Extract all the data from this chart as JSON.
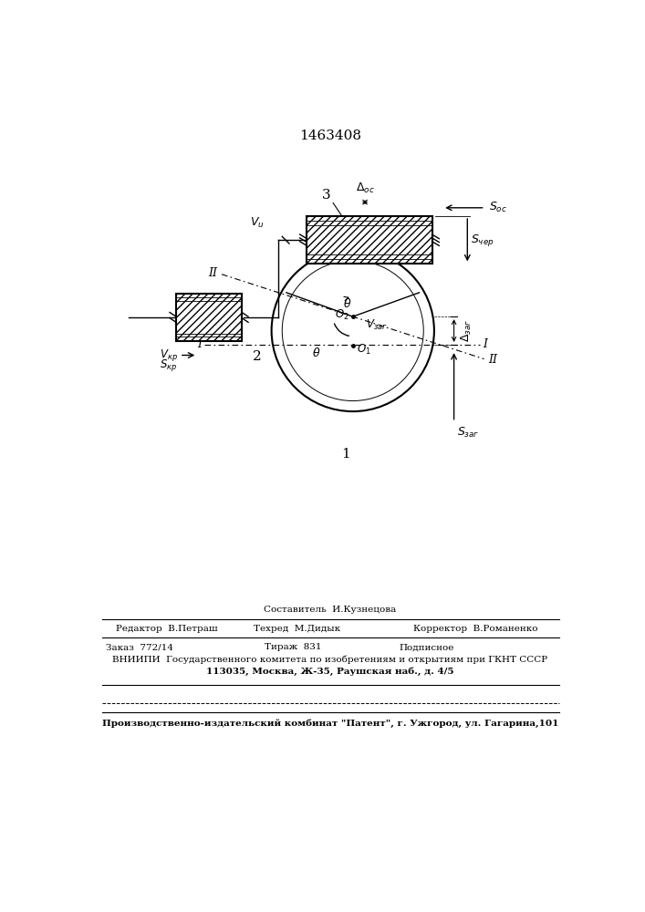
{
  "patent_number": "1463408",
  "bg_color": "#ffffff",
  "fig_width": 7.07,
  "fig_height": 10.0,
  "dpi": 100,
  "bottom_text": {
    "line0_center": "Составитель  И.Кузнецова",
    "line1_left": "Редактор  В.Петраш",
    "line1_center": "Техред  М.Дидык",
    "line1_right": "Корректор  В.Романенко",
    "line2_left": "Заказ  772/14",
    "line2_center": "Тираж  831",
    "line2_right": "Подписное",
    "line3": "ВНИИПИ  Государственного комитета по изобретениям и открытиям при ГКНТ СССР",
    "line4": "113035, Москва, Ж-35, Раушская наб., д. 4/5",
    "line5": "Производственно-издательский комбинат \"Патент\", г. Ужгород, ул. Гагарина,101"
  }
}
